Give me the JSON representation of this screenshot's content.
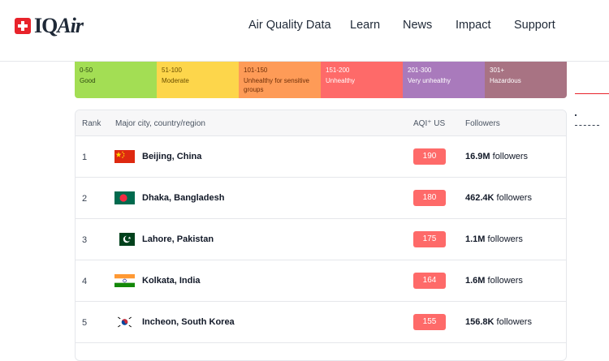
{
  "header": {
    "logo_text_main": "IQ",
    "logo_text_accent": "Air",
    "nav": [
      "Air Quality Data",
      "Learn",
      "News",
      "Impact",
      "Support"
    ]
  },
  "legend": [
    {
      "range": "0-50",
      "label": "Good",
      "color": "#a3de54"
    },
    {
      "range": "51-100",
      "label": "Moderate",
      "color": "#fdd64b"
    },
    {
      "range": "101-150",
      "label": "Unhealthy for sensitive groups",
      "color": "#fe9b57"
    },
    {
      "range": "151-200",
      "label": "Unhealthy",
      "color": "#fe6a69"
    },
    {
      "range": "201-300",
      "label": "Very unhealthy",
      "color": "#a97abc"
    },
    {
      "range": "301+",
      "label": "Hazardous",
      "color": "#a87383"
    }
  ],
  "table": {
    "headers": {
      "rank": "Rank",
      "city": "Major city, country/region",
      "aqi": "AQI⁺ US",
      "followers": "Followers"
    },
    "rows": [
      {
        "rank": "1",
        "flag": "china-flag",
        "city": "Beijing, China",
        "aqi": "190",
        "followers_count": "16.9M",
        "followers_suffix": " followers"
      },
      {
        "rank": "2",
        "flag": "bangladesh-flag",
        "city": "Dhaka, Bangladesh",
        "aqi": "180",
        "followers_count": "462.4K",
        "followers_suffix": " followers"
      },
      {
        "rank": "3",
        "flag": "pakistan-flag",
        "city": "Lahore, Pakistan",
        "aqi": "175",
        "followers_count": "1.1M",
        "followers_suffix": " followers"
      },
      {
        "rank": "4",
        "flag": "india-flag",
        "city": "Kolkata, India",
        "aqi": "164",
        "followers_count": "1.6M",
        "followers_suffix": " followers"
      },
      {
        "rank": "5",
        "flag": "south-korea-flag",
        "city": "Incheon, South Korea",
        "aqi": "155",
        "followers_count": "156.8K",
        "followers_suffix": " followers"
      }
    ]
  },
  "colors": {
    "brand_red": "#e8232b",
    "aqi_badge": "#fe6a69"
  }
}
